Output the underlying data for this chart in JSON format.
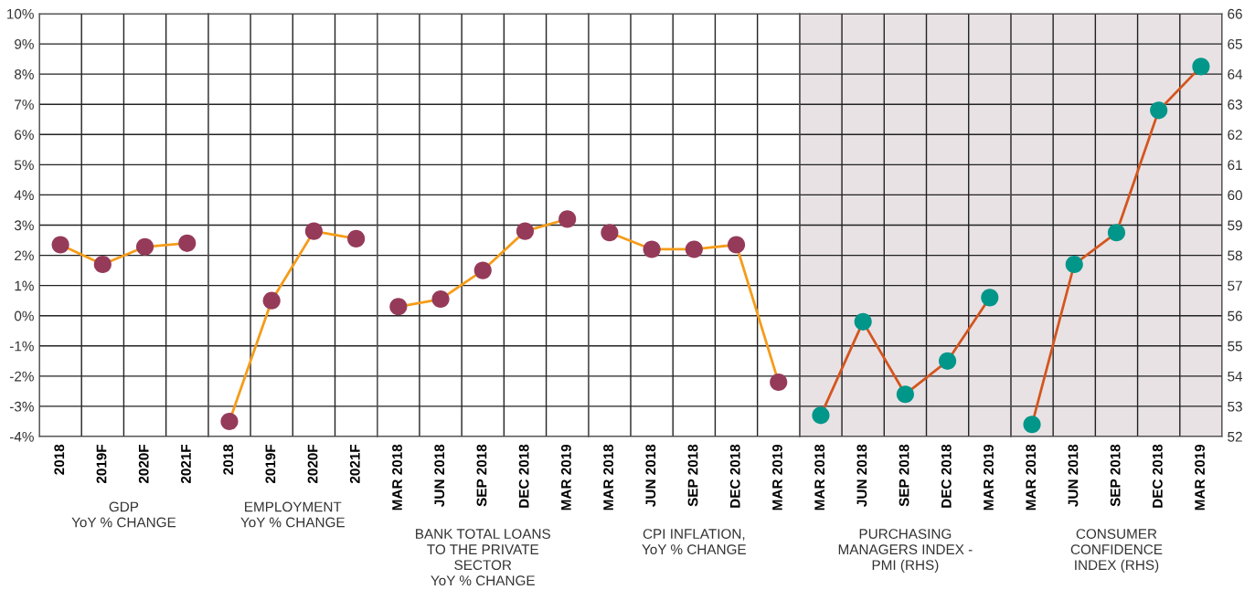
{
  "chart_data": [
    {
      "type": "line",
      "xlabel": "GDP\nYoY % CHANGE",
      "categories": [
        "2018",
        "2019F",
        "2020F",
        "2021F"
      ],
      "ylim": [
        -4,
        10
      ],
      "yticks": [
        {
          "value": -4,
          "label": "-4%"
        },
        {
          "value": -3,
          "label": "-3%"
        },
        {
          "value": -2,
          "label": "-2%"
        },
        {
          "value": -1,
          "label": "-1%"
        },
        {
          "value": 0,
          "label": "0%"
        },
        {
          "value": 1,
          "label": "1%"
        },
        {
          "value": 2,
          "label": "2%"
        },
        {
          "value": 3,
          "label": "3%"
        },
        {
          "value": 4,
          "label": "4%"
        },
        {
          "value": 5,
          "label": "5%"
        },
        {
          "value": 6,
          "label": "6%"
        },
        {
          "value": 7,
          "label": "7%"
        },
        {
          "value": 8,
          "label": "8%"
        },
        {
          "value": 9,
          "label": "9%"
        },
        {
          "value": 10,
          "label": "10%"
        }
      ],
      "grid": true,
      "marker": "circle",
      "series": [
        {
          "color": "#f59c1a",
          "colors": [
            "#963a5a",
            "#963a5a",
            "#963a5a",
            "#963a5a"
          ],
          "values": [
            2.35,
            1.7,
            2.28,
            2.4
          ]
        }
      ]
    },
    {
      "type": "line",
      "xlabel": "EMPLOYMENT\nYoY % CHANGE",
      "categories": [
        "2018",
        "2019F",
        "2020F",
        "2021F"
      ],
      "ylim": [
        -4,
        10
      ],
      "tick_labels": "x",
      "grid": true,
      "marker": "circle",
      "series": [
        {
          "color": "#f59c1a",
          "colors": [
            "#963a5a",
            "#963a5a",
            "#963a5a",
            "#963a5a"
          ],
          "values": [
            -3.5,
            0.5,
            2.8,
            2.55
          ]
        }
      ]
    },
    {
      "type": "line",
      "xlabel": "BANK TOTAL LOANS\nTO THE PRIVATE\nSECTOR\nYoY % CHANGE",
      "categories": [
        "MAR 2018",
        "JUN 2018",
        "SEP 2018",
        "DEC 2018",
        "MAR 2019"
      ],
      "ylim": [
        -4,
        10
      ],
      "tick_labels": "x",
      "grid": true,
      "marker": "circle",
      "series": [
        {
          "color": "#f59c1a",
          "colors": [
            "#963a5a",
            "#963a5a",
            "#963a5a",
            "#963a5a",
            "#963a5a"
          ],
          "values": [
            0.3,
            0.55,
            1.5,
            2.8,
            3.2
          ]
        }
      ]
    },
    {
      "type": "line",
      "xlabel": "CPI INFLATION,\nYoY % CHANGE",
      "categories": [
        "MAR 2018",
        "JUN 2018",
        "SEP 2018",
        "DEC 2018",
        "MAR 2019"
      ],
      "ylim": [
        -4,
        10
      ],
      "tick_labels": "x",
      "grid": true,
      "marker": "circle",
      "series": [
        {
          "color": "#f59c1a",
          "colors": [
            "#963a5a",
            "#963a5a",
            "#963a5a",
            "#963a5a",
            "#963a5a"
          ],
          "values": [
            2.75,
            2.2,
            2.2,
            2.35,
            -2.2
          ]
        }
      ]
    },
    {
      "type": "line",
      "xlabel": "PURCHASING\nMANAGERS INDEX -\nPMI (RHS)",
      "categories": [
        "MAR 2018",
        "JUN 2018",
        "SEP 2018",
        "DEC 2018",
        "MAR 2019"
      ],
      "y2lim": [
        52,
        66
      ],
      "tick_labels": "x",
      "grid": true,
      "marker": "circle",
      "bands": [
        {
          "axis": "y2",
          "from": 52,
          "to": 66,
          "color": "#e8e2e4"
        }
      ],
      "series": [
        {
          "axis": "y2",
          "color": "#d4551e",
          "colors": [
            "#00968a",
            "#00968a",
            "#00968a",
            "#00968a",
            "#00968a"
          ],
          "values": [
            52.7,
            55.8,
            53.4,
            54.5,
            56.6
          ]
        }
      ]
    },
    {
      "type": "line",
      "xlabel": "CONSUMER\nCONFIDENCE\nINDEX (RHS)",
      "categories": [
        "MAR 2018",
        "JUN 2018",
        "SEP 2018",
        "DEC 2018",
        "MAR 2019"
      ],
      "y2lim": [
        52,
        66
      ],
      "y2ticks": [
        52,
        53,
        54,
        55,
        56,
        57,
        58,
        59,
        60,
        61,
        62,
        63,
        64,
        65,
        66
      ],
      "grid": true,
      "marker": "circle",
      "bands": [
        {
          "axis": "y2",
          "from": 52,
          "to": 66,
          "color": "#e8e2e4"
        }
      ],
      "series": [
        {
          "axis": "y2",
          "color": "#d4551e",
          "colors": [
            "#00968a",
            "#00968a",
            "#00968a",
            "#00968a",
            "#00968a"
          ],
          "values": [
            52.4,
            57.7,
            58.75,
            62.8,
            64.25
          ]
        }
      ]
    }
  ]
}
